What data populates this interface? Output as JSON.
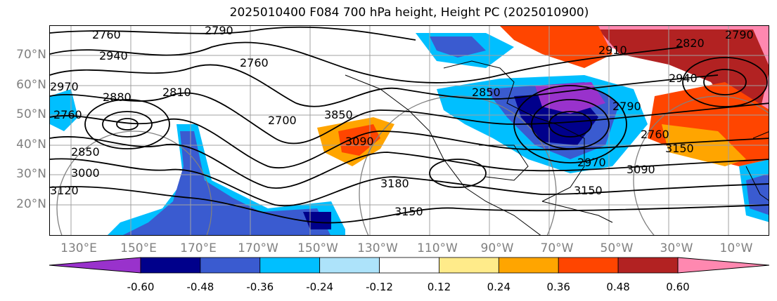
{
  "title": "2025010400 F084 700 hPa height, Height PC (2025010900)",
  "lat_labels": [
    "70°N",
    "60°N",
    "50°N",
    "40°N",
    "30°N",
    "20°N"
  ],
  "lon_labels": [
    "130°E",
    "150°E",
    "170°E",
    "170°W",
    "150°W",
    "130°W",
    "110°W",
    "90°W",
    "70°W",
    "50°W",
    "30°W",
    "10°W"
  ],
  "colorbar": {
    "colors": [
      "#9932CC",
      "#00008B",
      "#3A5BD0",
      "#00BFFF",
      "#ADE3FA",
      "#FFFFFF",
      "#FFEB8A",
      "#FFA500",
      "#FF4500",
      "#B22222",
      "#FF88B0"
    ],
    "ticks": [
      "-0.60",
      "-0.48",
      "-0.36",
      "-0.24",
      "-0.12",
      "0.12",
      "0.24",
      "0.36",
      "0.48",
      "0.60"
    ]
  },
  "contour_labels": [
    "2760",
    "2790",
    "2940",
    "2970",
    "2880",
    "2760",
    "2850",
    "3000",
    "3120",
    "2810",
    "2760",
    "2700",
    "3850",
    "3090",
    "3180",
    "3150",
    "3150",
    "2790",
    "2760",
    "2970",
    "3090",
    "3150",
    "2910",
    "2820",
    "2940",
    "2790",
    "2850"
  ]
}
